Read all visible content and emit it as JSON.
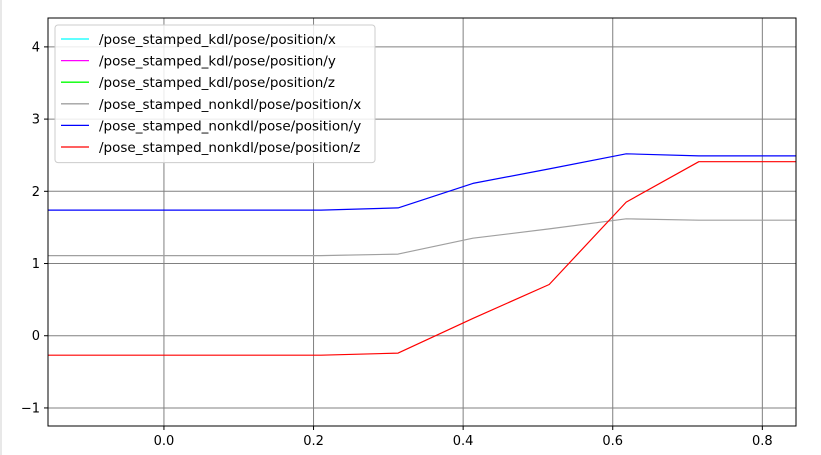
{
  "chart_data": {
    "type": "line",
    "title": "",
    "xlabel": "",
    "ylabel": "",
    "xlim": [
      -0.155,
      0.845
    ],
    "ylim": [
      -1.25,
      4.4
    ],
    "grid": true,
    "legend_position": "top-left",
    "x_ticks": [
      0.0,
      0.2,
      0.4,
      0.6,
      0.8
    ],
    "x_tick_labels": [
      "0.0",
      "0.2",
      "0.4",
      "0.6",
      "0.8"
    ],
    "y_ticks": [
      -1,
      0,
      1,
      2,
      3,
      4
    ],
    "y_tick_labels": [
      "−1",
      "0",
      "1",
      "2",
      "3",
      "4"
    ],
    "series": [
      {
        "name": "/pose_stamped_kdl/pose/position/x",
        "color": "#00ffff",
        "x": [],
        "y": []
      },
      {
        "name": "/pose_stamped_kdl/pose/position/y",
        "color": "#ff00ff",
        "x": [],
        "y": []
      },
      {
        "name": "/pose_stamped_kdl/pose/position/z",
        "color": "#00ff00",
        "x": [],
        "y": []
      },
      {
        "name": "/pose_stamped_nonkdl/pose/position/x",
        "color": "#a0a0a0",
        "x": [
          -0.155,
          0.21,
          0.313,
          0.413,
          0.515,
          0.618,
          0.715,
          0.845
        ],
        "y": [
          1.11,
          1.11,
          1.13,
          1.35,
          1.48,
          1.62,
          1.6,
          1.6
        ]
      },
      {
        "name": "/pose_stamped_nonkdl/pose/position/y",
        "color": "#0000ff",
        "x": [
          -0.155,
          0.21,
          0.313,
          0.413,
          0.515,
          0.618,
          0.715,
          0.845
        ],
        "y": [
          1.74,
          1.74,
          1.77,
          2.11,
          2.31,
          2.52,
          2.49,
          2.49
        ]
      },
      {
        "name": "/pose_stamped_nonkdl/pose/position/z",
        "color": "#ff0000",
        "x": [
          -0.155,
          0.21,
          0.313,
          0.413,
          0.515,
          0.618,
          0.715,
          0.845
        ],
        "y": [
          -0.27,
          -0.27,
          -0.24,
          0.24,
          0.71,
          1.85,
          2.41,
          2.41
        ]
      }
    ]
  }
}
